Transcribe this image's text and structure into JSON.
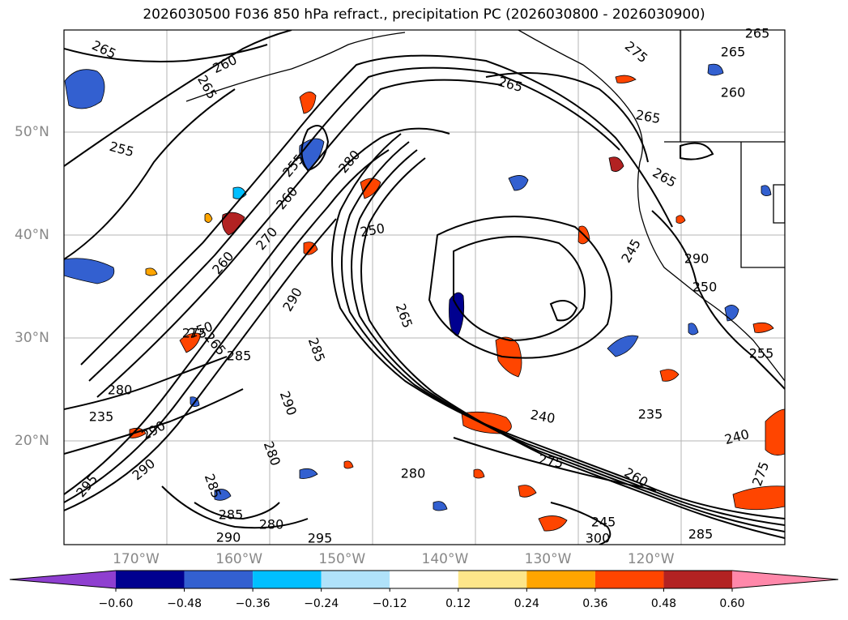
{
  "title": "2026030500 F036 850 hPa refract., precipitation PC (2026030800 - 2026030900)",
  "map": {
    "projection": "cylindrical",
    "lon_range": [
      -177,
      -107
    ],
    "lat_range": [
      10,
      60
    ],
    "gridlines": true,
    "lat_ticks": [
      "50°N",
      "40°N",
      "30°N",
      "20°N"
    ],
    "lon_ticks": [
      "170°W",
      "160°W",
      "150°W",
      "140°W",
      "130°W",
      "120°W"
    ],
    "contour_labels": [
      "265",
      "260",
      "265",
      "255",
      "265",
      "275",
      "265",
      "260",
      "265",
      "265",
      "255",
      "280",
      "260",
      "250",
      "270",
      "260",
      "290",
      "245",
      "250",
      "265",
      "265",
      "265",
      "285",
      "275",
      "285",
      "280",
      "290",
      "290",
      "240",
      "235",
      "240",
      "275",
      "280",
      "290",
      "260",
      "245",
      "295",
      "285",
      "280",
      "290",
      "285",
      "280",
      "295",
      "285",
      "290",
      "300",
      "275",
      "235",
      "250",
      "255"
    ]
  },
  "colorbar": {
    "type": "discrete-extend-both",
    "boundaries": [
      -0.72,
      -0.6,
      -0.48,
      -0.36,
      -0.24,
      -0.12,
      0.12,
      0.24,
      0.36,
      0.48,
      0.6,
      0.72
    ],
    "tick_labels": [
      "−0.60",
      "−0.48",
      "−0.36",
      "−0.24",
      "−0.12",
      "0.12",
      "0.24",
      "0.36",
      "0.48",
      "0.60"
    ],
    "colors": [
      "#8f3fd0",
      "#00008f",
      "#3360d0",
      "#00bfff",
      "#b0e2fa",
      "#ffffff",
      "#fde68a",
      "#ffa500",
      "#ff4500",
      "#b22222",
      "#ff88aa"
    ]
  }
}
